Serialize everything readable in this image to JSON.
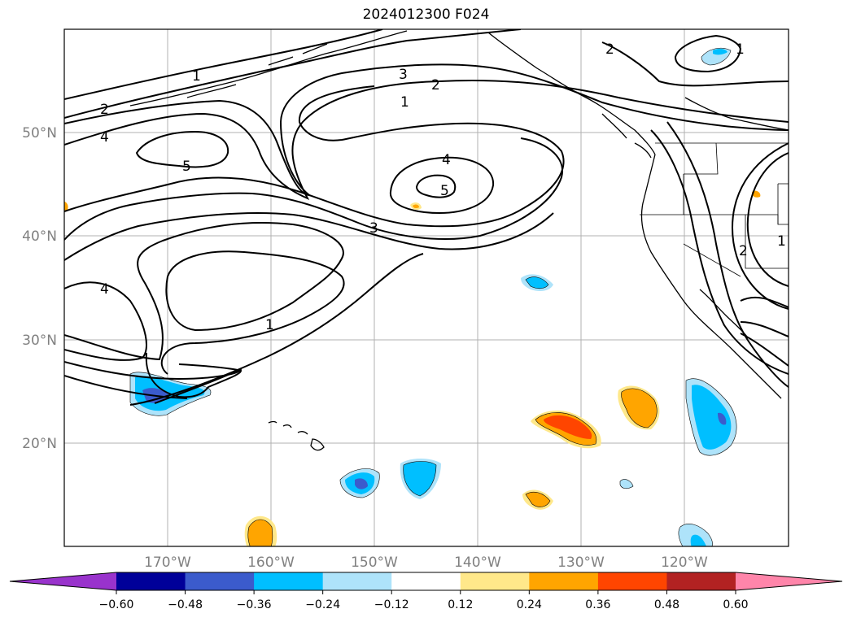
{
  "title": "2024012300 F024",
  "map": {
    "projection": "cylindrical",
    "lon_range": [
      -180,
      -110
    ],
    "lat_range": [
      10,
      60
    ],
    "grid": true,
    "lon_ticks": [
      "170°W",
      "160°W",
      "150°W",
      "140°W",
      "130°W",
      "120°W"
    ],
    "lat_ticks": [
      "50°N",
      "40°N",
      "30°N",
      "20°N"
    ],
    "contour_labels": [
      "1",
      "2",
      "3",
      "4",
      "5"
    ],
    "shading_colors": {
      "lt_-0.60": "#9933cc",
      "-0.60_-0.48": "#000099",
      "-0.48_-0.36": "#3b5bcc",
      "-0.36_-0.24": "#00bfff",
      "-0.24_-0.12": "#aee3fa",
      "-0.12_0.12": "#ffffff",
      "0.12_0.24": "#ffe88a",
      "0.24_0.36": "#ffa500",
      "0.36_0.48": "#ff4500",
      "0.48_0.60": "#b22222",
      "gt_0.60": "#ff85aa"
    }
  },
  "colorbar": {
    "ticks": [
      "−0.60",
      "−0.48",
      "−0.36",
      "−0.24",
      "−0.12",
      "0.12",
      "0.24",
      "0.36",
      "0.48",
      "0.60"
    ],
    "colors": [
      "#9933cc",
      "#000099",
      "#3b5bcc",
      "#00bfff",
      "#aee3fa",
      "#ffffff",
      "#ffe88a",
      "#ffa500",
      "#ff4500",
      "#b22222",
      "#ff85aa"
    ]
  }
}
